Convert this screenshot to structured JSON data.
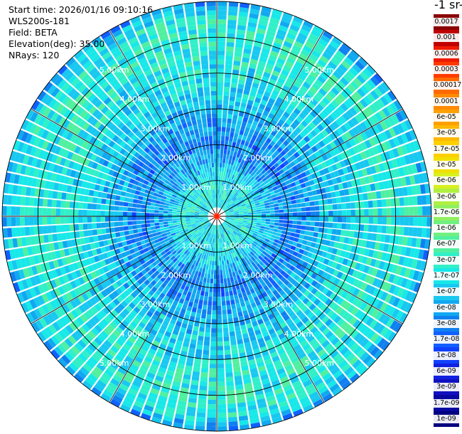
{
  "header": {
    "start_time": "Start time: 2026/01/16 09:10:16",
    "device": "WLS200s-181",
    "field": "Field: BETA",
    "elevation": "Elevation(deg): 35.00",
    "nrays": "NRays: 120"
  },
  "colorbar": {
    "unit_label": "-1 sr-",
    "labels": [
      "0.0017",
      "0.001",
      "0.0006",
      "0.0003",
      "0.00017",
      "0.0001",
      "6e-05",
      "3e-05",
      "1.7e-05",
      "1e-05",
      "6e-06",
      "3e-06",
      "1.7e-06",
      "1e-06",
      "6e-07",
      "3e-07",
      "1.7e-07",
      "1e-07",
      "6e-08",
      "3e-08",
      "1.7e-08",
      "1e-08",
      "6e-09",
      "3e-09",
      "1.7e-09",
      "1e-09"
    ],
    "colors": [
      "#8b0000",
      "#c00000",
      "#ee1a00",
      "#ff3a00",
      "#ff6a00",
      "#ff8a00",
      "#ffa000",
      "#ffb800",
      "#ffd000",
      "#f0e000",
      "#d8f020",
      "#b0f040",
      "#90f060",
      "#70f080",
      "#50f0a0",
      "#30f0c8",
      "#18e8e8",
      "#18c8f0",
      "#10a8f0",
      "#1080f0",
      "#1060ff",
      "#1040ff",
      "#1020e0",
      "#1010c0",
      "#0808a0",
      "#000080"
    ]
  },
  "chart_data": {
    "type": "heatmap",
    "projection": "polar PPI scan",
    "nrays": 120,
    "elevation_deg": 35.0,
    "max_range_km": 6.0,
    "range_rings_km": [
      1,
      2,
      3,
      4,
      5,
      6
    ],
    "ring_labels": [
      "1.00km",
      "2.00km",
      "3.00km",
      "4.00km",
      "5.00km"
    ],
    "spokes_deg": [
      0,
      30,
      60,
      90,
      120,
      150,
      180,
      210,
      240,
      270,
      300,
      330
    ],
    "radial_profile": [
      {
        "range_km": 0.0,
        "value": 1.7e-07
      },
      {
        "range_km": 1.0,
        "value": 1.7e-07
      },
      {
        "range_km": 1.4,
        "value": 8e-08
      },
      {
        "range_km": 2.0,
        "value": 3e-08
      },
      {
        "range_km": 2.5,
        "value": 4e-08
      },
      {
        "range_km": 3.0,
        "value": 8e-08
      },
      {
        "range_km": 4.0,
        "value": 1.7e-07
      },
      {
        "range_km": 5.0,
        "value": 2.5e-07
      },
      {
        "range_km": 5.6,
        "value": 2e-07
      },
      {
        "range_km": 6.0,
        "value": 4e-08
      }
    ]
  }
}
